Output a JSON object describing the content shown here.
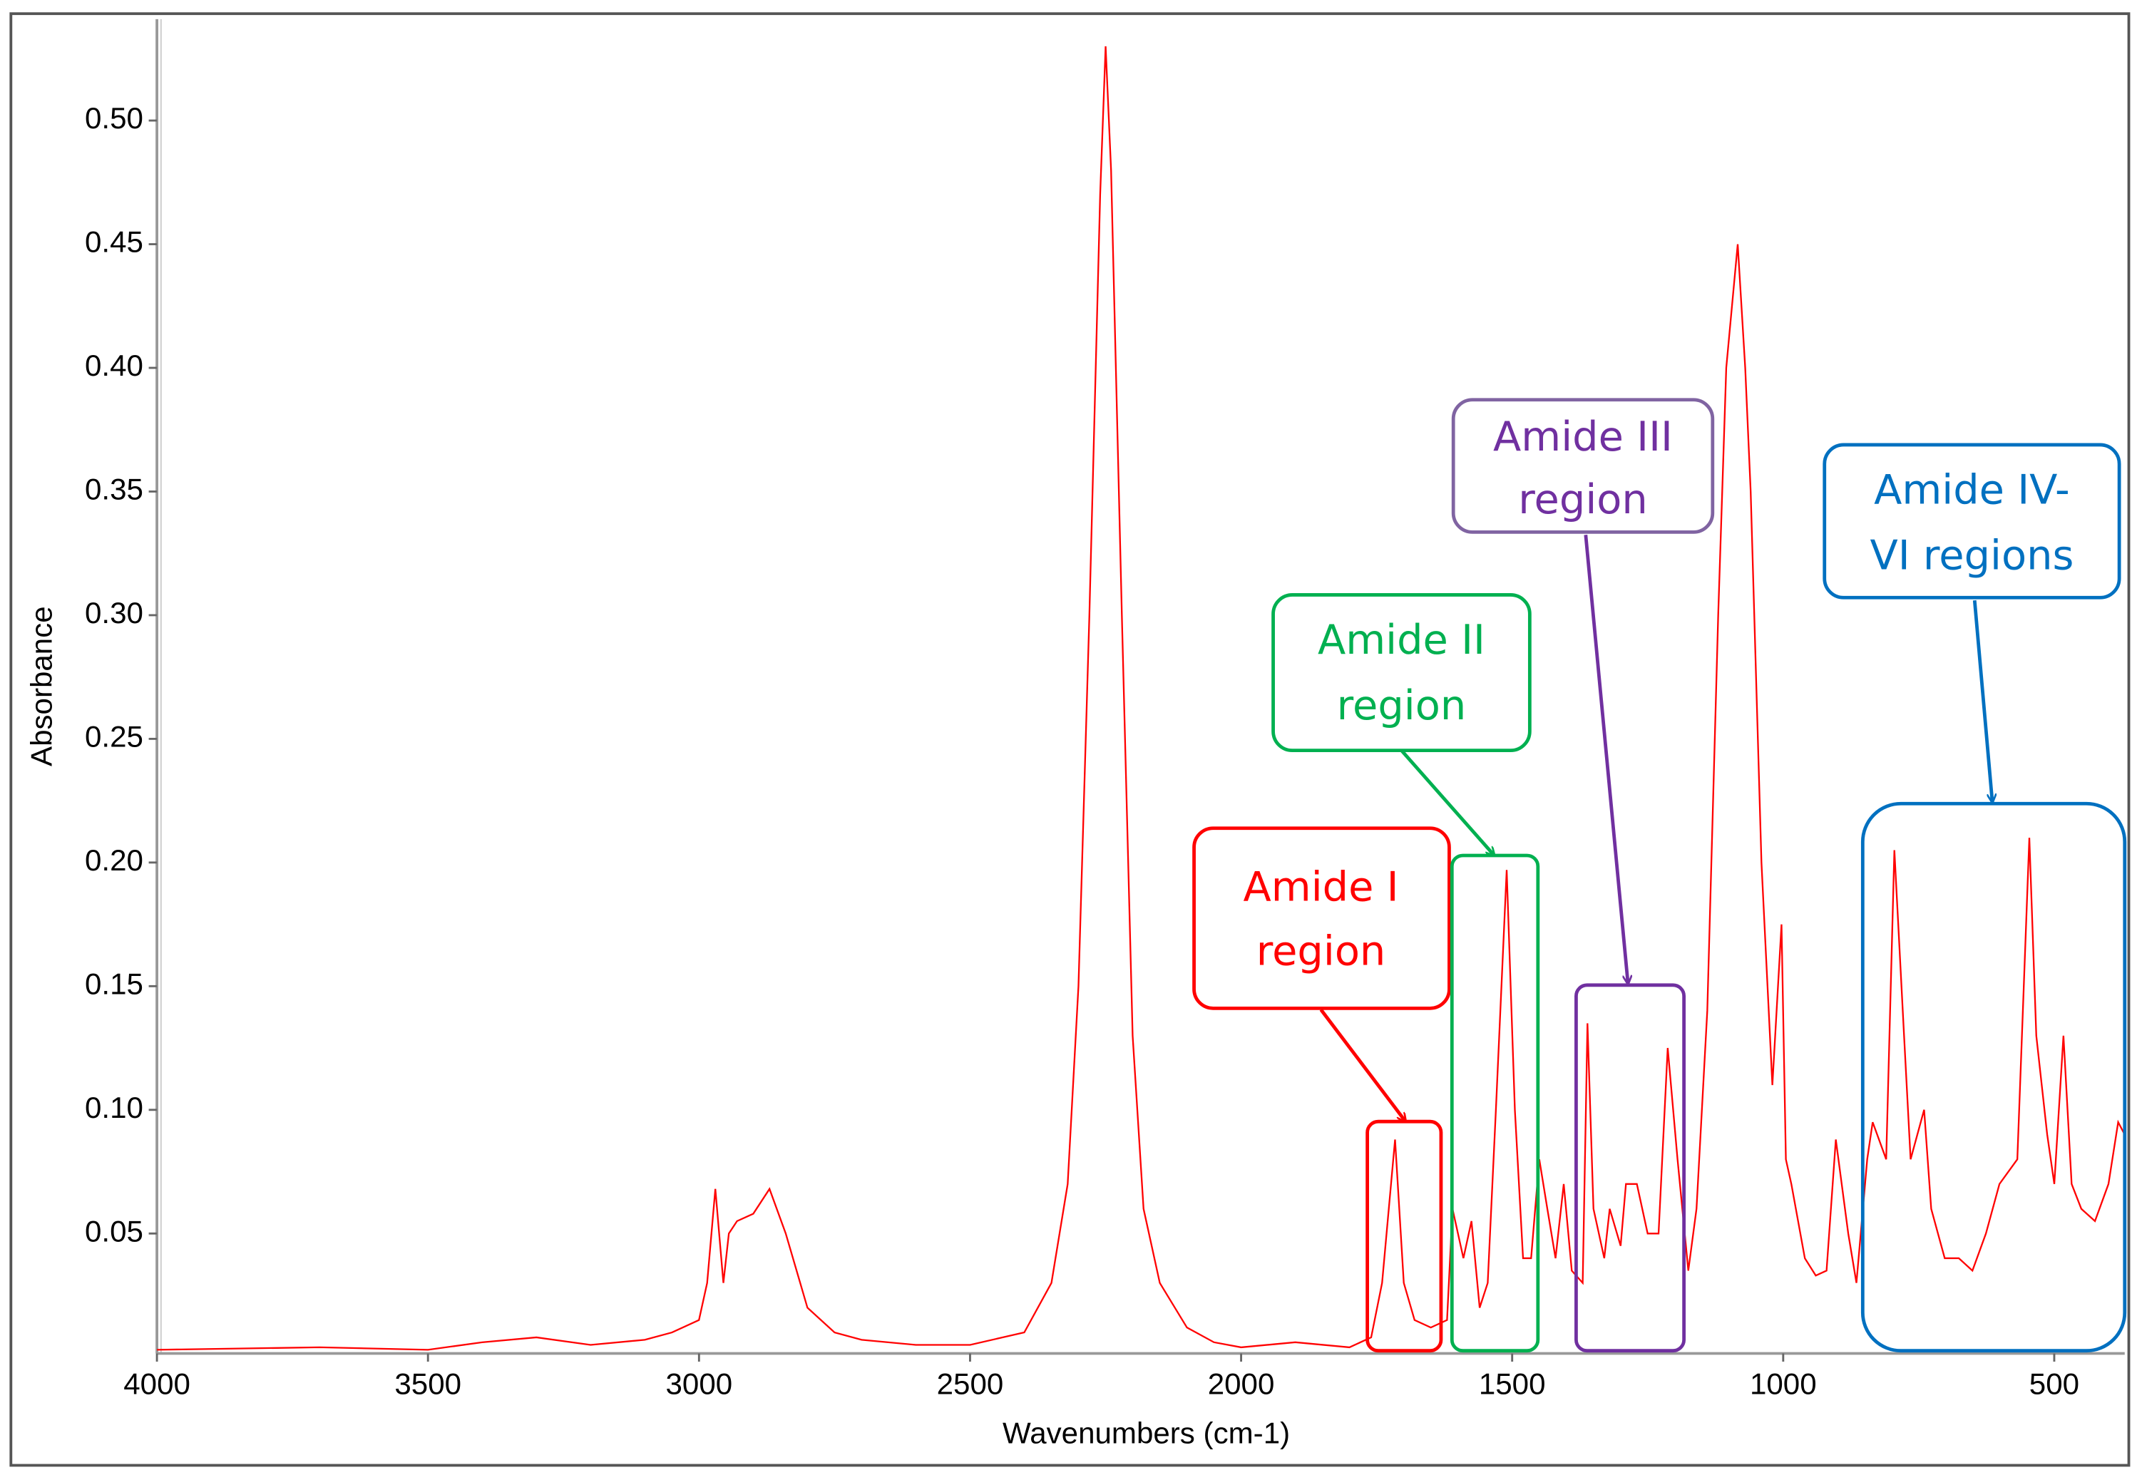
{
  "chart_data": {
    "type": "line",
    "x_label": "Wavenumbers (cm-1)",
    "y_label": "Absorbance",
    "xlim": [
      4000,
      370
    ],
    "ylim": [
      0.0015,
      0.541
    ],
    "xticks": [
      4000,
      3500,
      3000,
      2500,
      2000,
      1500,
      1000,
      500
    ],
    "yticks": [
      0.05,
      {
        "value": 0.1,
        "label": "0.10"
      },
      0.15,
      {
        "value": 0.2,
        "label": "0.20"
      },
      0.25,
      {
        "value": 0.3,
        "label": "0.30"
      },
      0.35,
      {
        "value": 0.4,
        "label": "0.40"
      },
      0.45,
      {
        "value": 0.5,
        "label": "0.50"
      }
    ],
    "color": "#ff0000",
    "x": [
      4000,
      3700,
      3500,
      3400,
      3300,
      3200,
      3100,
      3050,
      3000,
      2985,
      2970,
      2955,
      2945,
      2930,
      2900,
      2870,
      2840,
      2800,
      2750,
      2700,
      2600,
      2500,
      2400,
      2350,
      2320,
      2300,
      2280,
      2260,
      2250,
      2240,
      2220,
      2200,
      2180,
      2150,
      2100,
      2050,
      2000,
      1900,
      1800,
      1760,
      1740,
      1716,
      1700,
      1680,
      1650,
      1620,
      1610,
      1590,
      1575,
      1560,
      1545,
      1530,
      1510,
      1495,
      1480,
      1465,
      1450,
      1435,
      1420,
      1405,
      1390,
      1370,
      1361,
      1350,
      1330,
      1320,
      1300,
      1290,
      1270,
      1250,
      1230,
      1213,
      1195,
      1175,
      1160,
      1140,
      1120,
      1105,
      1084,
      1070,
      1060,
      1040,
      1020,
      1003,
      995,
      985,
      960,
      940,
      920,
      903,
      880,
      865,
      845,
      835,
      810,
      795,
      777,
      765,
      740,
      727,
      702,
      676,
      651,
      626,
      601,
      568,
      546,
      533,
      513,
      500,
      483,
      468,
      450,
      425,
      400,
      382,
      370
    ],
    "values": [
      0.003,
      0.004,
      0.003,
      0.006,
      0.008,
      0.005,
      0.007,
      0.01,
      0.015,
      0.03,
      0.068,
      0.03,
      0.05,
      0.055,
      0.058,
      0.068,
      0.05,
      0.02,
      0.01,
      0.007,
      0.005,
      0.005,
      0.01,
      0.03,
      0.07,
      0.15,
      0.3,
      0.47,
      0.53,
      0.48,
      0.3,
      0.13,
      0.06,
      0.03,
      0.012,
      0.006,
      0.004,
      0.006,
      0.004,
      0.008,
      0.03,
      0.088,
      0.03,
      0.015,
      0.012,
      0.015,
      0.06,
      0.04,
      0.055,
      0.02,
      0.03,
      0.1,
      0.197,
      0.1,
      0.04,
      0.04,
      0.08,
      0.06,
      0.04,
      0.07,
      0.035,
      0.03,
      0.135,
      0.06,
      0.04,
      0.06,
      0.045,
      0.07,
      0.07,
      0.05,
      0.05,
      0.125,
      0.08,
      0.035,
      0.06,
      0.14,
      0.3,
      0.4,
      0.45,
      0.4,
      0.35,
      0.2,
      0.11,
      0.175,
      0.08,
      0.07,
      0.04,
      0.033,
      0.035,
      0.088,
      0.05,
      0.03,
      0.08,
      0.095,
      0.08,
      0.205,
      0.13,
      0.08,
      0.1,
      0.06,
      0.04,
      0.04,
      0.035,
      0.05,
      0.07,
      0.08,
      0.21,
      0.13,
      0.09,
      0.07,
      0.13,
      0.07,
      0.06,
      0.055,
      0.07,
      0.095,
      0.09
    ],
    "annotations": [
      {
        "lines": [
          "Amide I",
          "region"
        ],
        "color": "#ff0000"
      },
      {
        "lines": [
          "Amide II",
          "region"
        ],
        "color": "#00b050"
      },
      {
        "lines": [
          "Amide III",
          "region"
        ],
        "color": "#7030a0"
      },
      {
        "lines": [
          "Amide IV-",
          "VI regions"
        ],
        "color": "#0070c0"
      }
    ]
  }
}
